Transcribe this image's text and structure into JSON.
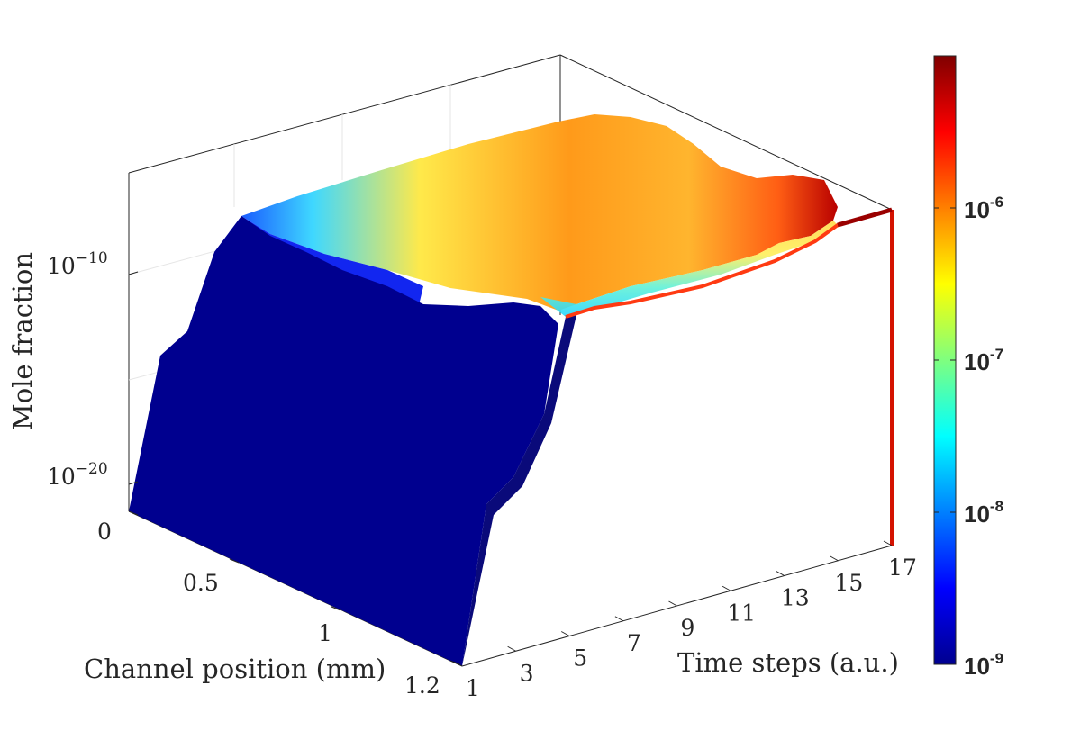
{
  "chart_data": {
    "type": "surface",
    "title": "",
    "xlabel": "Channel position (mm)",
    "ylabel": "Time steps (a.u.)",
    "zlabel": "Mole fraction",
    "x_ticks": [
      "0",
      "0.5",
      "1",
      "1.2"
    ],
    "y_ticks": [
      "1",
      "3",
      "5",
      "7",
      "9",
      "11",
      "13",
      "15",
      "17"
    ],
    "z_ticks": [
      {
        "base": "10",
        "exp": "−20"
      },
      {
        "base": "10",
        "exp": "−10"
      }
    ],
    "z_scale": "log",
    "colormap": "jet",
    "colorbar": {
      "scale": "log",
      "range": [
        1e-09,
        1e-05
      ],
      "ticks": [
        {
          "base": "10",
          "exp": "-9"
        },
        {
          "base": "10",
          "exp": "-8"
        },
        {
          "base": "10",
          "exp": "-7"
        },
        {
          "base": "10",
          "exp": "-6"
        }
      ]
    },
    "time_steps": [
      1,
      3,
      5,
      7,
      9,
      11,
      13,
      15,
      17
    ],
    "max_surface_value_log10": [
      -10.5,
      -9.6,
      -9.2,
      -7.5,
      -6.3,
      -6.1,
      -6.3,
      -6.6,
      -5.3
    ],
    "edge_value_log10": [
      -12.0,
      -11.0,
      -10.8,
      -10.5,
      -10.3,
      -9.8,
      -9.2,
      -8.5,
      -8.0
    ]
  }
}
